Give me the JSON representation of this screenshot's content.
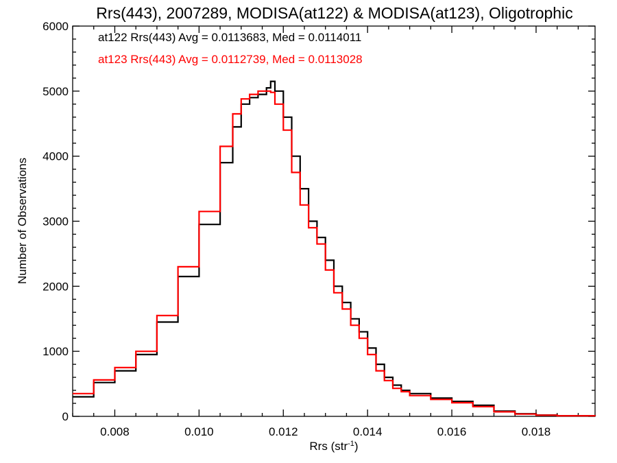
{
  "chart_data": {
    "type": "line",
    "step": true,
    "title": "Rrs(443), 2007289, MODISA(at122) & MODISA(at123), Oligotrophic",
    "xlabel_main": "Rrs (str",
    "xlabel_sup": "-1",
    "xlabel_close": ")",
    "ylabel": "Number of Observations",
    "xlim": [
      0.007,
      0.0194
    ],
    "ylim": [
      0,
      6000
    ],
    "xticks": [
      0.008,
      0.01,
      0.012,
      0.014,
      0.016,
      0.018
    ],
    "xtick_labels": [
      "0.008",
      "0.010",
      "0.012",
      "0.014",
      "0.016",
      "0.018"
    ],
    "yticks": [
      0,
      1000,
      2000,
      3000,
      4000,
      5000,
      6000
    ],
    "ytick_labels": [
      "0",
      "1000",
      "2000",
      "3000",
      "4000",
      "5000",
      "6000"
    ],
    "grid": false,
    "legend_position": "top-left",
    "series": [
      {
        "name": "at122",
        "legend_text": "at122 Rrs(443) Avg = 0.0113683, Med = 0.0114011",
        "color": "#000000",
        "x": [
          0.007,
          0.0075,
          0.008,
          0.0085,
          0.009,
          0.0095,
          0.01,
          0.0105,
          0.0108,
          0.011,
          0.0112,
          0.0114,
          0.0116,
          0.0117,
          0.0118,
          0.012,
          0.0122,
          0.0124,
          0.0126,
          0.0128,
          0.013,
          0.0132,
          0.0134,
          0.0136,
          0.0138,
          0.014,
          0.0142,
          0.0144,
          0.0146,
          0.0148,
          0.015,
          0.0155,
          0.016,
          0.0165,
          0.017,
          0.0175,
          0.018,
          0.0185,
          0.0194
        ],
        "y": [
          300,
          520,
          700,
          950,
          1450,
          2150,
          2950,
          3900,
          4450,
          4800,
          4900,
          4950,
          5050,
          5150,
          5000,
          4600,
          4000,
          3500,
          3000,
          2750,
          2400,
          2000,
          1750,
          1500,
          1300,
          1050,
          800,
          600,
          480,
          400,
          350,
          280,
          230,
          170,
          80,
          40,
          20,
          10,
          5
        ]
      },
      {
        "name": "at123",
        "legend_text": "at123 Rrs(443) Avg = 0.0112739, Med = 0.0113028",
        "color": "#ff0000",
        "x": [
          0.007,
          0.0075,
          0.008,
          0.0085,
          0.009,
          0.0095,
          0.01,
          0.0105,
          0.0108,
          0.011,
          0.0112,
          0.0114,
          0.0116,
          0.0117,
          0.0118,
          0.012,
          0.0122,
          0.0124,
          0.0126,
          0.0128,
          0.013,
          0.0132,
          0.0134,
          0.0136,
          0.0138,
          0.014,
          0.0142,
          0.0144,
          0.0146,
          0.0148,
          0.015,
          0.0155,
          0.016,
          0.0165,
          0.017,
          0.0175,
          0.018,
          0.0185,
          0.0194
        ],
        "y": [
          350,
          560,
          750,
          1000,
          1550,
          2300,
          3150,
          4150,
          4650,
          4880,
          4950,
          5000,
          5000,
          4980,
          4800,
          4400,
          3750,
          3250,
          2900,
          2650,
          2250,
          1900,
          1650,
          1400,
          1200,
          950,
          700,
          550,
          430,
          380,
          320,
          260,
          210,
          150,
          70,
          35,
          18,
          8,
          5
        ]
      }
    ]
  }
}
